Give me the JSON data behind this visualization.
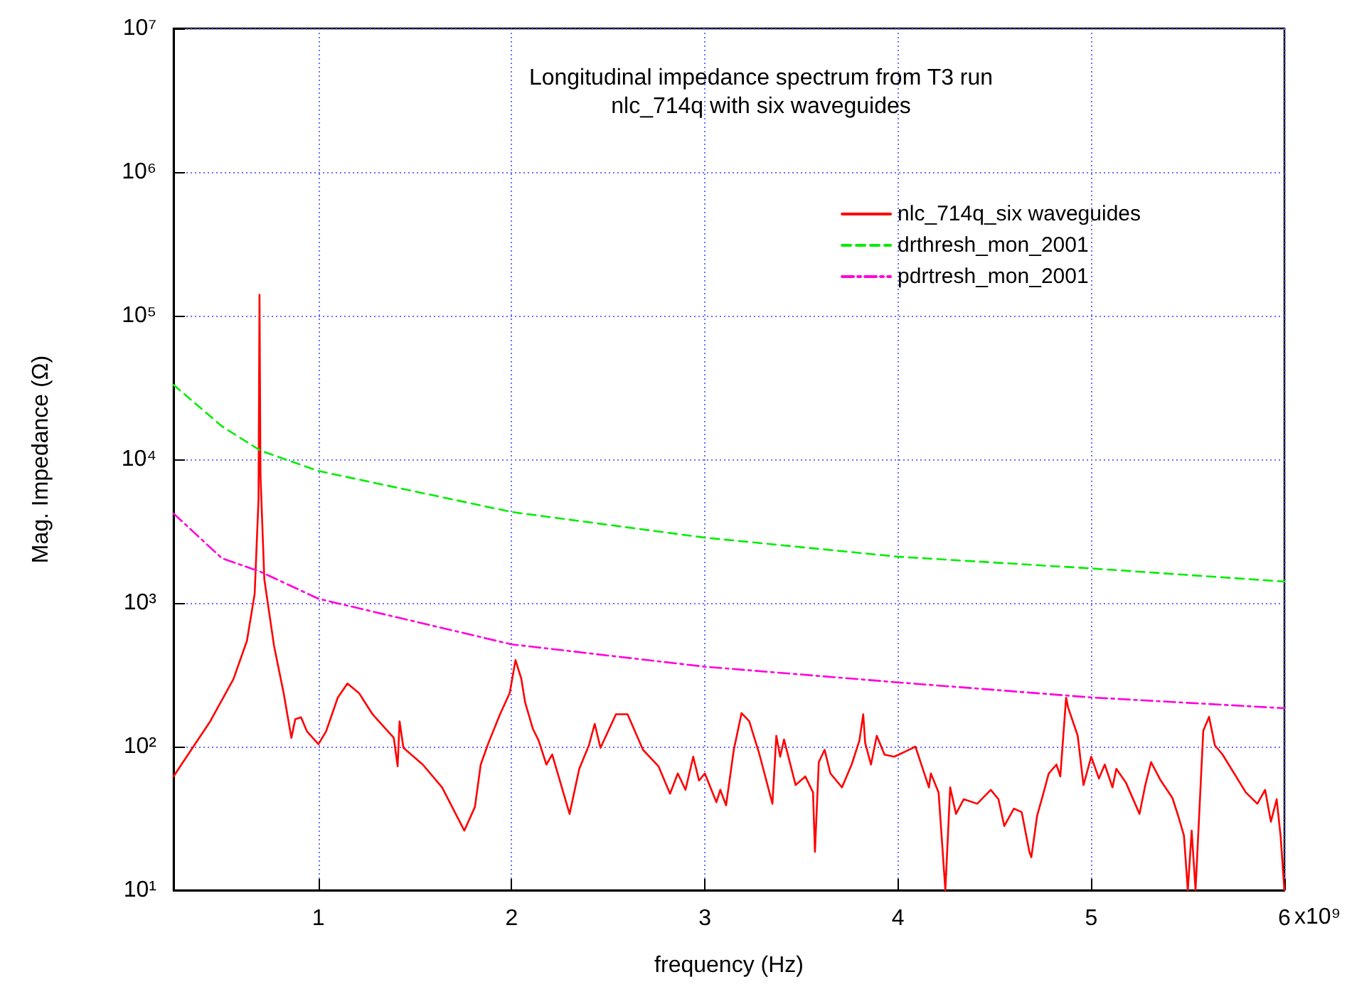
{
  "chart_data": {
    "type": "line",
    "title": "Longitudinal impedance spectrum from T3 run",
    "subtitle": "nlc_714q with six waveguides",
    "xlabel": "frequency (Hz)",
    "ylabel": "Mag. Impedance (Ω)",
    "annotations": [
      "x10⁹"
    ],
    "xlim": [
      0.25,
      6
    ],
    "xticks": [
      1,
      2,
      3,
      4,
      5,
      6
    ],
    "ylim": [
      10,
      10000000
    ],
    "yticks": [
      {
        "value": 10,
        "label": "10¹"
      },
      {
        "value": 100,
        "label": "10²"
      },
      {
        "value": 1000,
        "label": "10³"
      },
      {
        "value": 10000,
        "label": "10⁴"
      },
      {
        "value": 100000,
        "label": "10⁵"
      },
      {
        "value": 1000000,
        "label": "10⁶"
      },
      {
        "value": 10000000,
        "label": "10⁷"
      }
    ],
    "log": "y",
    "grid": true,
    "legend": "top right",
    "marker": "none",
    "series": [
      {
        "name": "nlc_714q_six waveguides",
        "color": "#ff0000",
        "line_style": "solid",
        "x": [
          0.25,
          0.44,
          0.56,
          0.63,
          0.67,
          0.69,
          0.695,
          0.7,
          0.72,
          0.77,
          0.82,
          0.86,
          0.88,
          0.91,
          0.94,
          1.0,
          1.04,
          1.1,
          1.15,
          1.21,
          1.28,
          1.39,
          1.41,
          1.42,
          1.44,
          1.54,
          1.64,
          1.755,
          1.81,
          1.84,
          1.88,
          1.94,
          1.99,
          2.02,
          2.05,
          2.07,
          2.11,
          2.14,
          2.18,
          2.21,
          2.3,
          2.35,
          2.4,
          2.43,
          2.46,
          2.54,
          2.6,
          2.68,
          2.76,
          2.82,
          2.86,
          2.9,
          2.94,
          2.97,
          3.0,
          3.06,
          3.08,
          3.11,
          3.15,
          3.19,
          3.23,
          3.28,
          3.35,
          3.37,
          3.39,
          3.41,
          3.47,
          3.52,
          3.56,
          3.57,
          3.59,
          3.62,
          3.65,
          3.71,
          3.76,
          3.8,
          3.82,
          3.83,
          3.86,
          3.89,
          3.93,
          3.98,
          4.02,
          4.09,
          4.16,
          4.17,
          4.21,
          4.245,
          4.27,
          4.3,
          4.34,
          4.41,
          4.48,
          4.52,
          4.55,
          4.6,
          4.64,
          4.68,
          4.69,
          4.72,
          4.75,
          4.78,
          4.82,
          4.84,
          4.87,
          4.88,
          4.93,
          4.96,
          5.0,
          5.04,
          5.07,
          5.11,
          5.13,
          5.18,
          5.25,
          5.28,
          5.31,
          5.36,
          5.42,
          5.45,
          5.48,
          5.5,
          5.52,
          5.54,
          5.58,
          5.61,
          5.64,
          5.68,
          5.74,
          5.8,
          5.86,
          5.9,
          5.93,
          5.96,
          5.98,
          6.0
        ],
        "values": [
          62,
          150,
          295,
          545,
          1160,
          5300,
          140000,
          7800,
          1460,
          505,
          236,
          115,
          155,
          160,
          128,
          104,
          128,
          219,
          275,
          236,
          168,
          115,
          73,
          150,
          98,
          75,
          52,
          26,
          38,
          75,
          106,
          168,
          236,
          400,
          297,
          203,
          133,
          110,
          75,
          88,
          34,
          70,
          102,
          144,
          98,
          168,
          168,
          95,
          73,
          47,
          65,
          50,
          85,
          58,
          65,
          41,
          50,
          39,
          95,
          171,
          150,
          91,
          40,
          119,
          85,
          112,
          54,
          62,
          48,
          18.5,
          78,
          95,
          65,
          52,
          75,
          110,
          168,
          106,
          75,
          119,
          88,
          85,
          90,
          100,
          52,
          65,
          48,
          10,
          52,
          34,
          43,
          40,
          50,
          43,
          28,
          37,
          35,
          18.5,
          17,
          33,
          46,
          65,
          75,
          62,
          219,
          188,
          119,
          54,
          85,
          60,
          75,
          52,
          70,
          56,
          34,
          54,
          78,
          58,
          44,
          33,
          24,
          10,
          26,
          10,
          129,
          161,
          102,
          88,
          65,
          48,
          40,
          50,
          30,
          43,
          24,
          10
        ]
      },
      {
        "name": "drthresh_mon_2001",
        "color": "#00ee00",
        "line_style": "dashed",
        "x": [
          0.25,
          0.5,
          0.7,
          1,
          2,
          3,
          4,
          5,
          6
        ],
        "values": [
          33000,
          17000,
          11500,
          8300,
          4300,
          2850,
          2100,
          1740,
          1410
        ]
      },
      {
        "name": "pdrtresh_mon_2001",
        "color": "#ff00dd",
        "line_style": "dashdot",
        "x": [
          0.25,
          0.5,
          0.7,
          1,
          2,
          3,
          4,
          5,
          6
        ],
        "values": [
          4200,
          2050,
          1650,
          1070,
          515,
          360,
          280,
          220,
          185
        ]
      }
    ]
  }
}
